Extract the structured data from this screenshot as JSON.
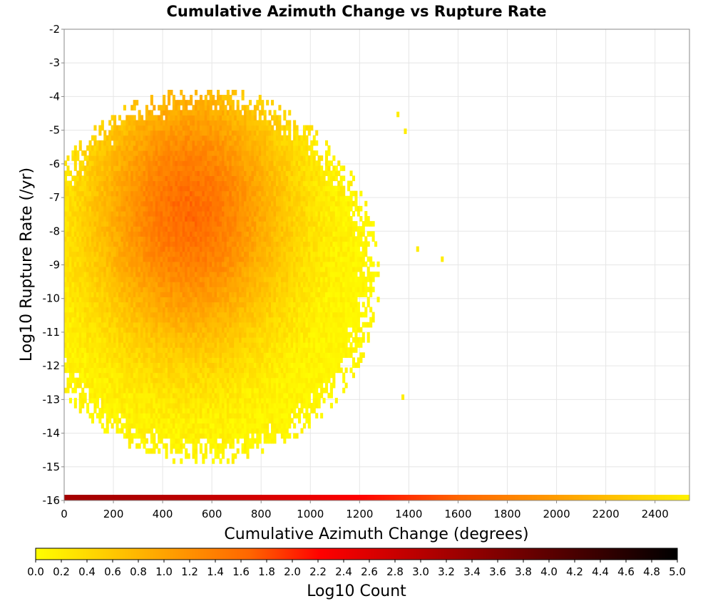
{
  "chart_data": {
    "type": "heatmap",
    "title": "Cumulative Azimuth Change vs Rupture Rate",
    "xlabel": "Cumulative Azimuth Change (degrees)",
    "ylabel": "Log10 Rupture Rate (/yr)",
    "xlim": [
      0,
      2540
    ],
    "ylim": [
      -16,
      -2
    ],
    "x_ticks": [
      "0",
      "200",
      "400",
      "600",
      "800",
      "1000",
      "1200",
      "1400",
      "1600",
      "1800",
      "2000",
      "2200",
      "2400"
    ],
    "y_ticks": [
      "-2",
      "-3",
      "-4",
      "-5",
      "-6",
      "-7",
      "-8",
      "-9",
      "-10",
      "-11",
      "-12",
      "-13",
      "-14",
      "-15",
      "-16"
    ],
    "grid": true,
    "bin_size": {
      "x": 10,
      "y": 0.15
    },
    "colorbar": {
      "label": "Log10 Count",
      "range": [
        0,
        5
      ],
      "ticks": [
        "0.0",
        "0.2",
        "0.4",
        "0.6",
        "0.8",
        "1.0",
        "1.2",
        "1.4",
        "1.6",
        "1.8",
        "2.0",
        "2.2",
        "2.4",
        "2.6",
        "2.8",
        "3.0",
        "3.2",
        "3.4",
        "3.6",
        "3.8",
        "4.0",
        "4.2",
        "4.4",
        "4.6",
        "4.8",
        "5.0"
      ],
      "colors": [
        "#ffff00",
        "#ffcc00",
        "#ff9900",
        "#ff6600",
        "#ff0000",
        "#cc0000",
        "#990000",
        "#660000",
        "#330000",
        "#000000"
      ],
      "placement": "bottom"
    },
    "density_summary": {
      "peak_count_log10": 1.6,
      "peak_location": {
        "x": 500,
        "y": -7.5
      },
      "x_extent": [
        0,
        1530
      ],
      "y_extent": [
        -15.4,
        -4.0
      ]
    },
    "marginal_row": {
      "y": -16,
      "description": "bottom row of bins spanning full x range",
      "log10_count_at_x0": 3.2,
      "log10_count_at_x2500": 0.2
    },
    "outliers": [
      {
        "x": 1430,
        "y": -8.6,
        "log10_count": 0.2
      },
      {
        "x": 1530,
        "y": -8.9,
        "log10_count": 0.2
      },
      {
        "x": 1370,
        "y": -13.0,
        "log10_count": 0.2
      },
      {
        "x": 1380,
        "y": -5.1,
        "log10_count": 0.2
      },
      {
        "x": 1350,
        "y": -4.6,
        "log10_count": 0.2
      }
    ]
  }
}
